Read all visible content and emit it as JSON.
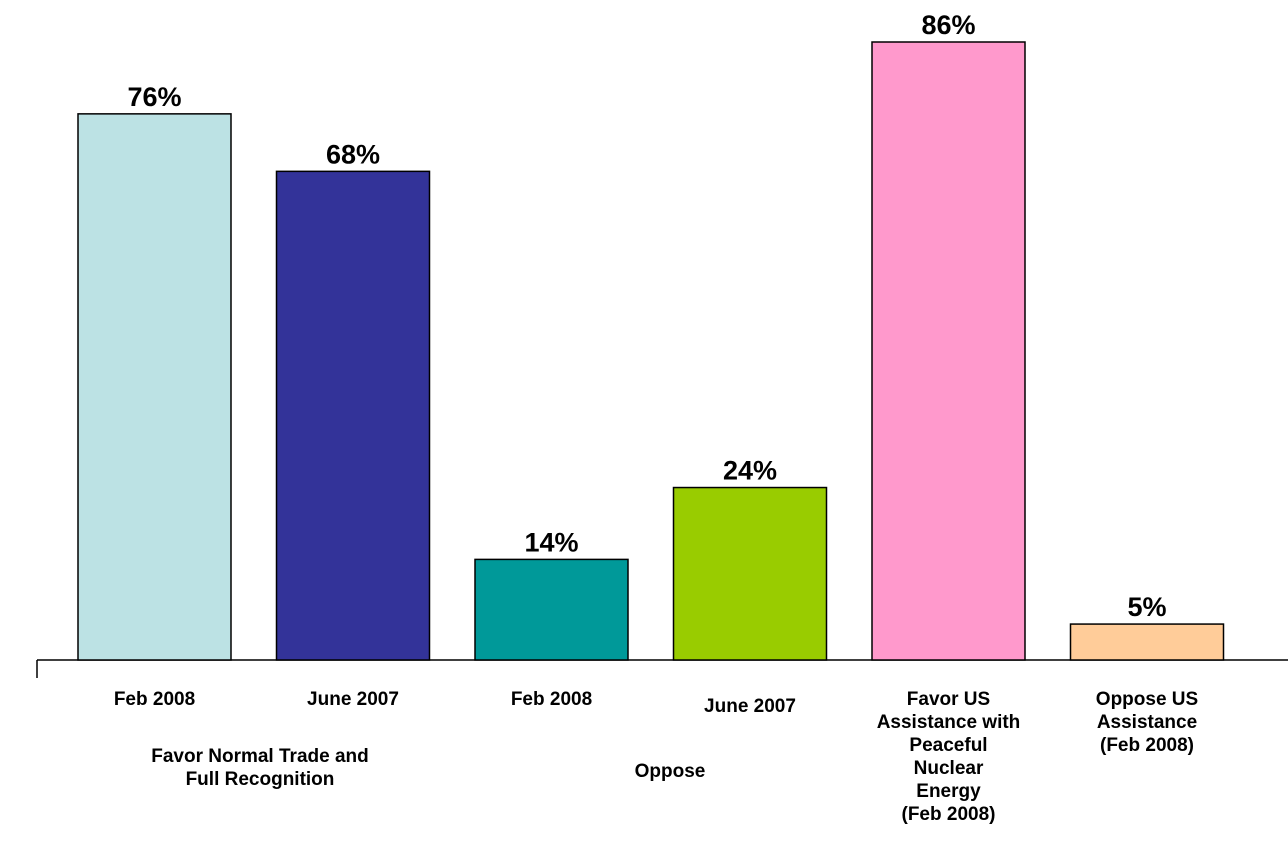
{
  "chart_data": {
    "type": "bar",
    "categories": [
      "Feb 2008",
      "June 2007",
      "Feb 2008",
      "June 2007",
      "Favor US\nAssistance with\nPeaceful\nNuclear\nEnergy\n(Feb 2008)",
      "Oppose US\nAssistance\n(Feb 2008)"
    ],
    "values": [
      76,
      68,
      14,
      24,
      86,
      5
    ],
    "value_labels": [
      "76%",
      "68%",
      "14%",
      "24%",
      "86%",
      "5%"
    ],
    "colors": [
      "#bce2e4",
      "#333399",
      "#009999",
      "#99cc00",
      "#ff99cc",
      "#ffcc99"
    ],
    "group_labels": [
      "Favor Normal Trade and\nFull Recognition",
      "Oppose"
    ]
  }
}
